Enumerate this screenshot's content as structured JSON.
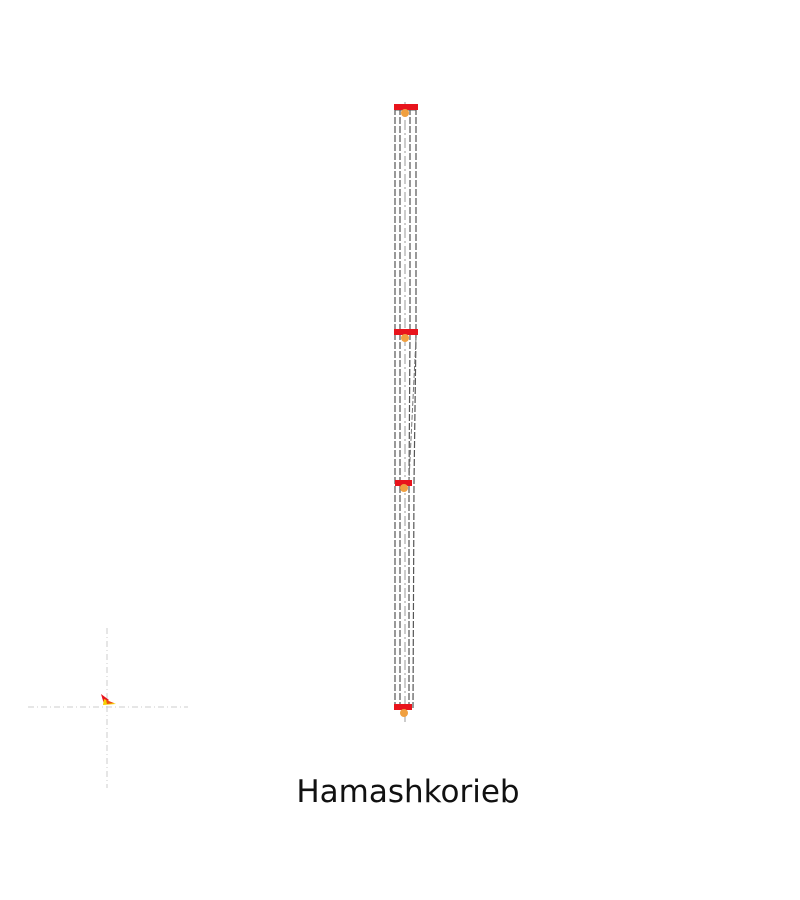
{
  "caption": "Hamashkorieb",
  "colors": {
    "background": "#ffffff",
    "frame_line": "#555555",
    "center_line": "#999999",
    "joint": "#e8141c",
    "node": "#f0a040",
    "origin_axis": "#cccccc",
    "origin_marker_red": "#e8141c",
    "origin_marker_yellow": "#f5d000"
  },
  "icons": {
    "origin": "coordinate-origin-icon",
    "joint": "joint-marker-icon",
    "node": "node-dot-icon"
  },
  "structure": {
    "segments": 3,
    "levels": 4
  }
}
